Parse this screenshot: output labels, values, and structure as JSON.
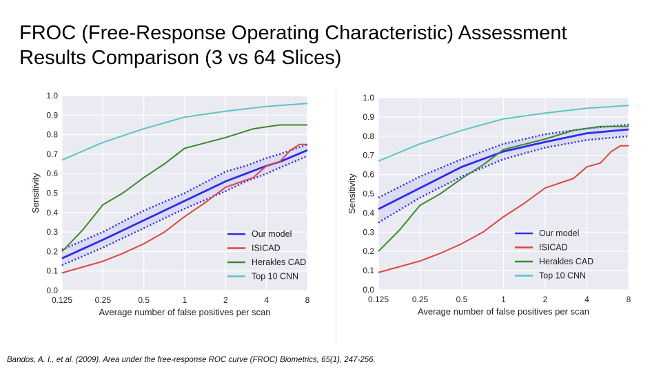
{
  "title": {
    "line1": "FROC (Free-Response Operating Characteristic) Assessment",
    "line2": "Results Comparison (3 vs 64 Slices)"
  },
  "citation": "Bandos, A. I., et al. (2009). Area under the free-response ROC curve (FROC) Biometrics, 65(1), 247-256.",
  "chart_data": [
    {
      "type": "line",
      "title": "",
      "xlabel": "Average number of false positives per scan",
      "ylabel": "Sensitivity",
      "xscale": "log2",
      "xlim": [
        0.125,
        8
      ],
      "ylim": [
        0,
        1
      ],
      "grid": true,
      "legend": "bottom-right",
      "xticks": [
        "0.125",
        "0.25",
        "0.5",
        "1",
        "2",
        "4",
        "8"
      ],
      "yticks": [
        "0.0",
        "0.1",
        "0.2",
        "0.3",
        "0.4",
        "0.5",
        "0.6",
        "0.7",
        "0.8",
        "0.9",
        "1.0"
      ],
      "series": [
        {
          "name": "Our model",
          "color": "#2b2bef",
          "x": [
            0.125,
            0.25,
            0.5,
            1,
            2,
            2.83,
            4,
            5,
            8
          ],
          "y": [
            0.165,
            0.26,
            0.36,
            0.46,
            0.56,
            0.6,
            0.64,
            0.66,
            0.72
          ],
          "band_upper": [
            0.21,
            0.3,
            0.41,
            0.5,
            0.61,
            0.64,
            0.68,
            0.7,
            0.75
          ],
          "band_lower": [
            0.13,
            0.22,
            0.32,
            0.42,
            0.51,
            0.56,
            0.6,
            0.63,
            0.69
          ]
        },
        {
          "name": "ISICAD",
          "color": "#e0443a",
          "x": [
            0.125,
            0.25,
            0.35,
            0.5,
            0.71,
            1,
            1.41,
            2,
            3.2,
            4,
            5,
            6,
            7,
            8
          ],
          "y": [
            0.09,
            0.15,
            0.19,
            0.24,
            0.3,
            0.38,
            0.45,
            0.53,
            0.58,
            0.64,
            0.66,
            0.72,
            0.75,
            0.75
          ]
        },
        {
          "name": "Herakles CAD",
          "color": "#3a8a2a",
          "x": [
            0.125,
            0.177,
            0.25,
            0.35,
            0.5,
            0.71,
            1,
            2,
            3.2,
            5,
            8
          ],
          "y": [
            0.2,
            0.31,
            0.44,
            0.5,
            0.58,
            0.65,
            0.73,
            0.785,
            0.83,
            0.85,
            0.85
          ]
        },
        {
          "name": "Top 10 CNN",
          "color": "#5bc4c4",
          "x": [
            0.125,
            0.25,
            0.5,
            1,
            2,
            4,
            8
          ],
          "y": [
            0.67,
            0.76,
            0.83,
            0.89,
            0.92,
            0.945,
            0.96
          ]
        }
      ]
    },
    {
      "type": "line",
      "title": "",
      "xlabel": "Average number of false positives per scan",
      "ylabel": "Sensitivity",
      "xscale": "log2",
      "xlim": [
        0.125,
        8
      ],
      "ylim": [
        0,
        1
      ],
      "grid": true,
      "legend": "bottom-right",
      "xticks": [
        "0.125",
        "0.25",
        "0.5",
        "1",
        "2",
        "4",
        "8"
      ],
      "yticks": [
        "0.0",
        "0.1",
        "0.2",
        "0.3",
        "0.4",
        "0.5",
        "0.6",
        "0.7",
        "0.8",
        "0.9",
        "1.0"
      ],
      "series": [
        {
          "name": "Our model",
          "color": "#2b2bef",
          "x": [
            0.125,
            0.25,
            0.5,
            1,
            2,
            4,
            8
          ],
          "y": [
            0.42,
            0.53,
            0.64,
            0.72,
            0.77,
            0.815,
            0.835
          ],
          "band_upper": [
            0.48,
            0.59,
            0.68,
            0.76,
            0.81,
            0.84,
            0.86
          ],
          "band_lower": [
            0.35,
            0.48,
            0.59,
            0.68,
            0.74,
            0.78,
            0.8
          ]
        },
        {
          "name": "ISICAD",
          "color": "#e0443a",
          "x": [
            0.125,
            0.25,
            0.35,
            0.5,
            0.71,
            1,
            1.41,
            2,
            3.2,
            4,
            5,
            6,
            7,
            8
          ],
          "y": [
            0.09,
            0.15,
            0.19,
            0.24,
            0.3,
            0.38,
            0.45,
            0.53,
            0.58,
            0.64,
            0.66,
            0.72,
            0.75,
            0.75
          ]
        },
        {
          "name": "Herakles CAD",
          "color": "#3a8a2a",
          "x": [
            0.125,
            0.177,
            0.25,
            0.35,
            0.5,
            0.71,
            1,
            2,
            3.2,
            5,
            8
          ],
          "y": [
            0.2,
            0.31,
            0.44,
            0.5,
            0.58,
            0.65,
            0.73,
            0.785,
            0.83,
            0.85,
            0.85
          ]
        },
        {
          "name": "Top 10 CNN",
          "color": "#5bc4c4",
          "x": [
            0.125,
            0.25,
            0.5,
            1,
            2,
            4,
            8
          ],
          "y": [
            0.67,
            0.76,
            0.83,
            0.89,
            0.92,
            0.945,
            0.96
          ]
        }
      ]
    }
  ]
}
